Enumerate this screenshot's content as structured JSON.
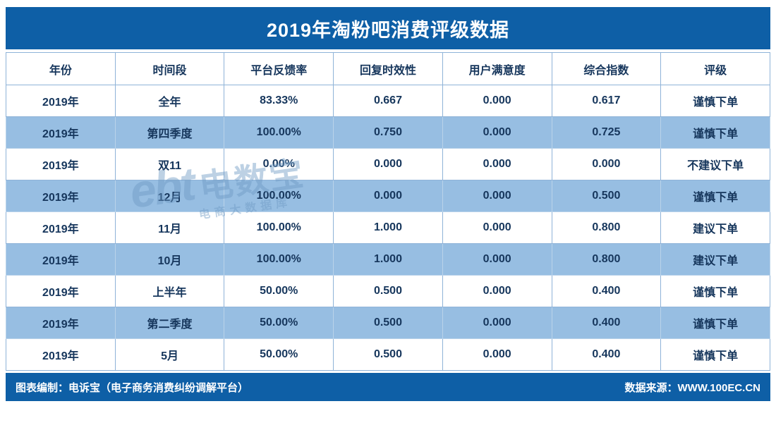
{
  "chart_data": {
    "type": "table",
    "title": "2019年淘粉吧消费评级数据",
    "columns": [
      "年份",
      "时间段",
      "平台反馈率",
      "回复时效性",
      "用户满意度",
      "综合指数",
      "评级"
    ],
    "rows": [
      [
        "2019年",
        "全年",
        "83.33%",
        "0.667",
        "0.000",
        "0.617",
        "谨慎下单"
      ],
      [
        "2019年",
        "第四季度",
        "100.00%",
        "0.750",
        "0.000",
        "0.725",
        "谨慎下单"
      ],
      [
        "2019年",
        "双11",
        "0.00%",
        "0.000",
        "0.000",
        "0.000",
        "不建议下单"
      ],
      [
        "2019年",
        "12月",
        "100.00%",
        "0.000",
        "0.000",
        "0.500",
        "谨慎下单"
      ],
      [
        "2019年",
        "11月",
        "100.00%",
        "1.000",
        "0.000",
        "0.800",
        "建议下单"
      ],
      [
        "2019年",
        "10月",
        "100.00%",
        "1.000",
        "0.000",
        "0.800",
        "建议下单"
      ],
      [
        "2019年",
        "上半年",
        "50.00%",
        "0.500",
        "0.000",
        "0.400",
        "谨慎下单"
      ],
      [
        "2019年",
        "第二季度",
        "50.00%",
        "0.500",
        "0.000",
        "0.400",
        "谨慎下单"
      ],
      [
        "2019年",
        "5月",
        "50.00%",
        "0.500",
        "0.000",
        "0.400",
        "谨慎下单"
      ]
    ]
  },
  "footer": {
    "left": "图表编制：电诉宝（电子商务消费纠纷调解平台）",
    "right": "数据来源：WWW.100EC.CN"
  },
  "watermark": {
    "logo": "ebt",
    "name": "电数宝",
    "tagline": "电商大数据库"
  },
  "colors": {
    "bar_blue": "#0E5FA6",
    "row_alt_blue": "#97BEE2",
    "border_blue": "#8FB3D8",
    "text_dark": "#16365C"
  }
}
